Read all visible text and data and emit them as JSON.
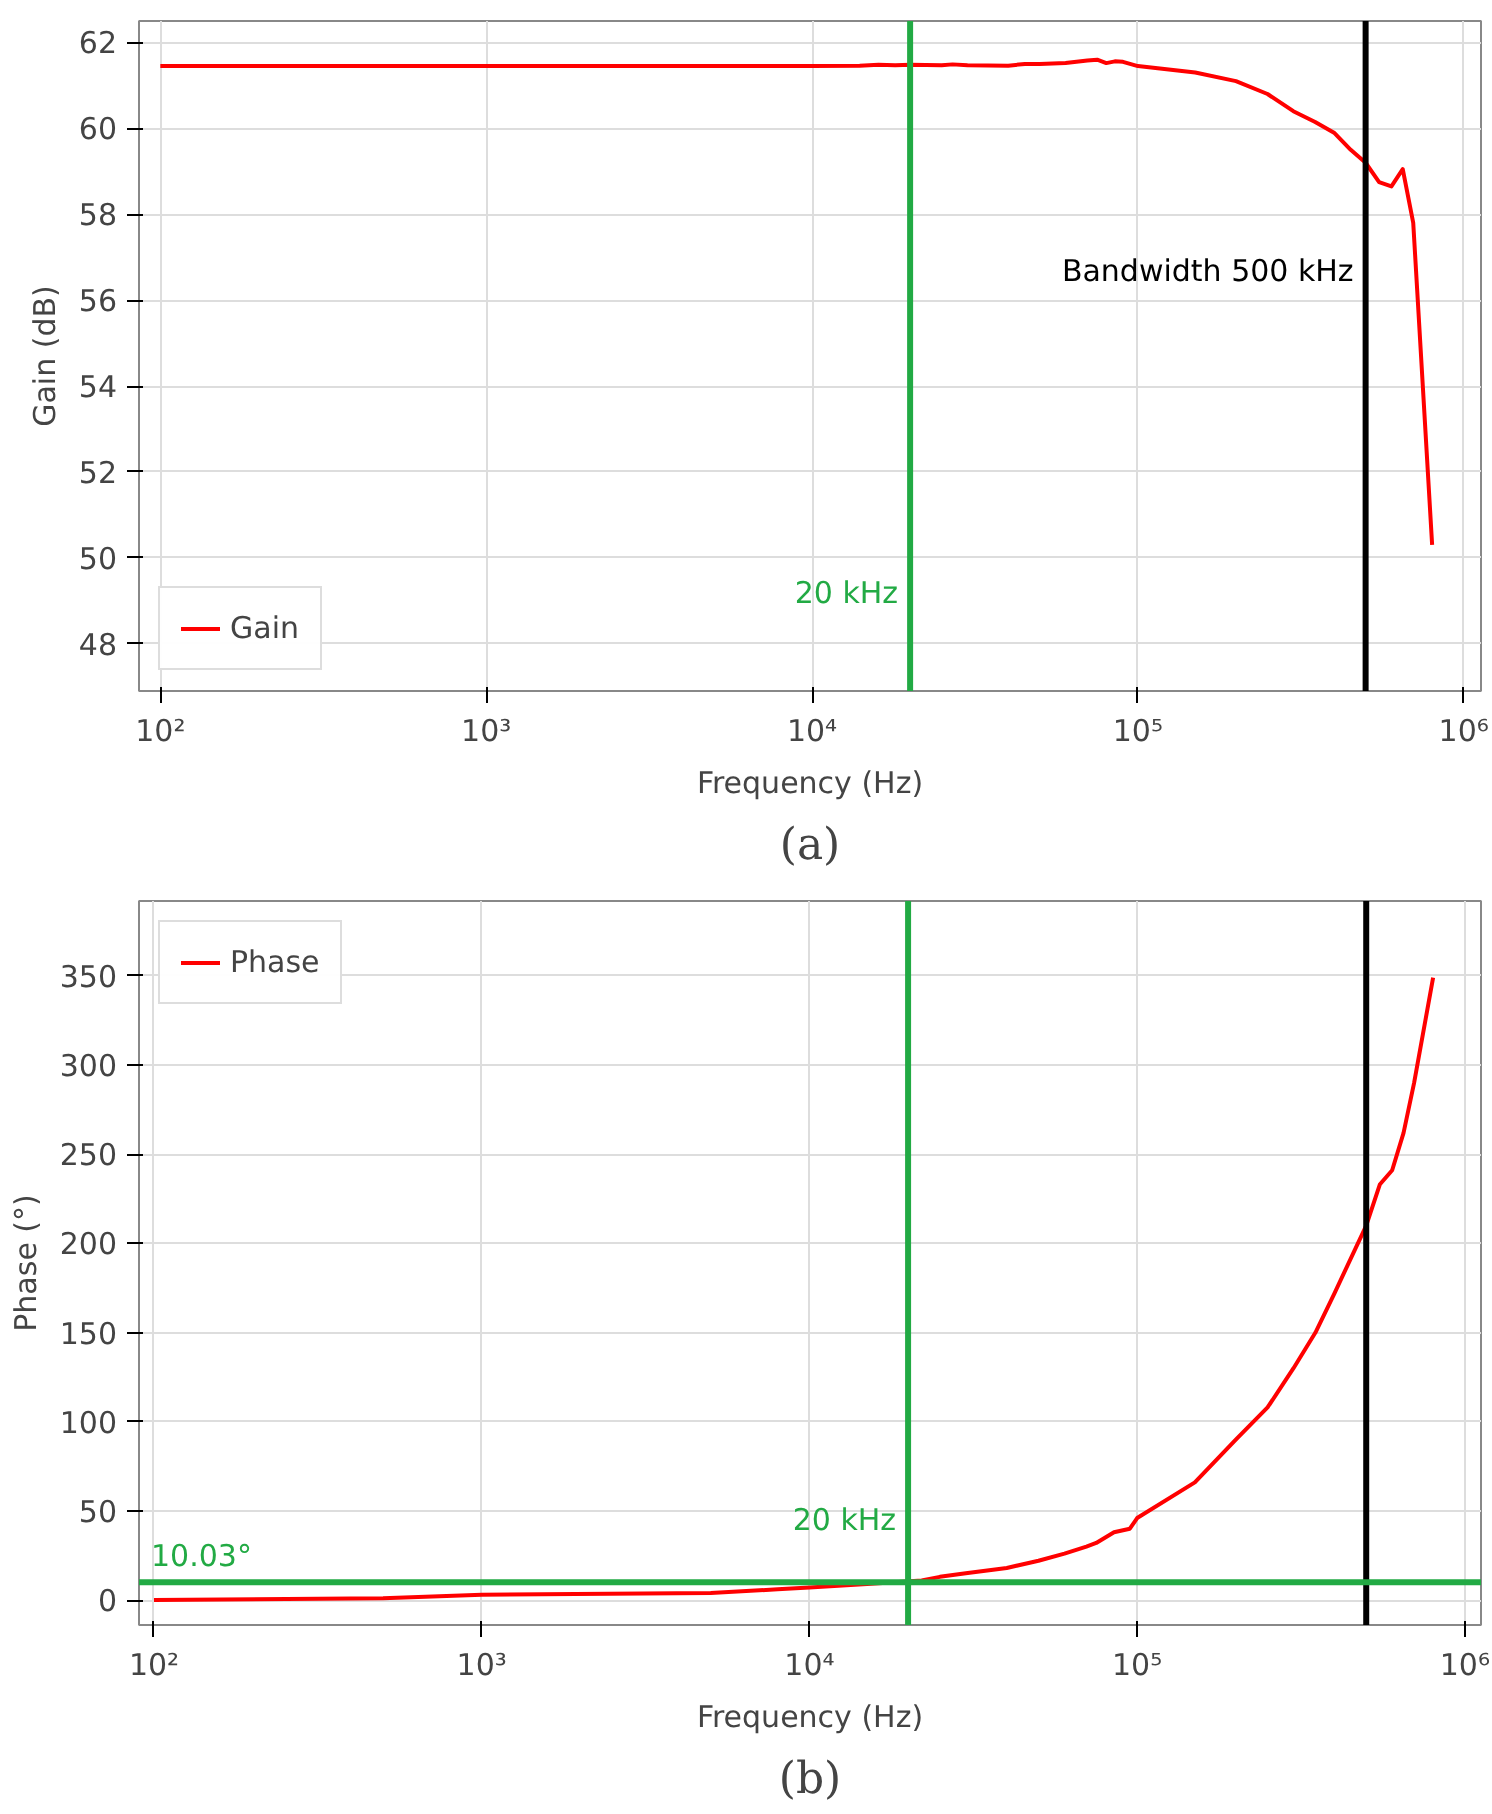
{
  "chart_data": [
    {
      "type": "line",
      "xlabel": "Frequency (Hz)",
      "ylabel": "Gain (dB)",
      "log": "x",
      "grid": true,
      "legend": "bottom left",
      "xlim": [
        86,
        1130000
      ],
      "ylim": [
        46.9,
        62.5
      ],
      "xticks": [
        {
          "value": 100,
          "label": "10²"
        },
        {
          "value": 1000,
          "label": "10³"
        },
        {
          "value": 10000,
          "label": "10⁴"
        },
        {
          "value": 100000,
          "label": "10⁵"
        },
        {
          "value": 1000000,
          "label": "10⁶"
        }
      ],
      "yticks": [
        48,
        50,
        52,
        54,
        56,
        58,
        60,
        62
      ],
      "series": [
        {
          "name": "Gain",
          "color": "#ff0000",
          "x": [
            100,
            1000,
            5000,
            10000,
            14000,
            16000,
            18000,
            20000,
            25000,
            27000,
            30000,
            40000,
            45000,
            50000,
            60000,
            70000,
            75000,
            80000,
            85000,
            90000,
            100000,
            150000,
            200000,
            250000,
            300000,
            350000,
            400000,
            450000,
            500000,
            550000,
            600000,
            650000,
            700000,
            800000
          ],
          "values": [
            61.45,
            61.45,
            61.45,
            61.45,
            61.46,
            61.48,
            61.47,
            61.48,
            61.47,
            61.49,
            61.47,
            61.46,
            61.5,
            61.5,
            61.52,
            61.58,
            61.6,
            61.52,
            61.56,
            61.55,
            61.45,
            61.3,
            61.1,
            60.8,
            60.4,
            60.15,
            59.9,
            59.5,
            59.2,
            58.75,
            58.65,
            59.05,
            57.8,
            50.3
          ]
        }
      ],
      "ref_lines": [
        {
          "axis": "x",
          "value": 20000,
          "label": "20 kHz",
          "color": "#22aa44"
        },
        {
          "axis": "x",
          "value": 500000,
          "label": "Bandwidth 500 kHz",
          "color": "#000000"
        }
      ],
      "annotations": [
        "(a)"
      ]
    },
    {
      "type": "line",
      "xlabel": "Frequency (Hz)",
      "ylabel": "Phase (°)",
      "log": "x",
      "grid": true,
      "legend": "top left",
      "xlim": [
        90,
        1120000
      ],
      "ylim": [
        -14,
        392
      ],
      "xticks": [
        {
          "value": 100,
          "label": "10²"
        },
        {
          "value": 1000,
          "label": "10³"
        },
        {
          "value": 10000,
          "label": "10⁴"
        },
        {
          "value": 100000,
          "label": "10⁵"
        },
        {
          "value": 1000000,
          "label": "10⁶"
        }
      ],
      "yticks": [
        0,
        50,
        100,
        150,
        200,
        250,
        300,
        350
      ],
      "series": [
        {
          "name": "Phase",
          "color": "#ff0000",
          "x": [
            100,
            500,
            1000,
            5000,
            8000,
            10000,
            15000,
            22000,
            25000,
            30000,
            40000,
            50000,
            60000,
            70000,
            75000,
            85000,
            95000,
            100000,
            150000,
            200000,
            250000,
            300000,
            350000,
            400000,
            500000,
            550000,
            600000,
            650000,
            700000,
            800000
          ],
          "values": [
            0,
            1,
            3,
            4,
            6,
            7,
            9,
            11,
            13,
            15,
            18,
            22,
            26,
            30,
            32,
            38,
            40,
            46,
            66,
            90,
            108,
            130,
            150,
            172,
            210,
            233,
            241,
            262,
            290,
            349
          ]
        }
      ],
      "ref_lines": [
        {
          "axis": "x",
          "value": 20000,
          "label": "20 kHz",
          "color": "#22aa44"
        },
        {
          "axis": "x",
          "value": 500000,
          "color": "#000000"
        },
        {
          "axis": "y",
          "value": 10.03,
          "label": "10.03°",
          "color": "#22aa44"
        }
      ],
      "annotations": [
        "(b)"
      ]
    }
  ]
}
